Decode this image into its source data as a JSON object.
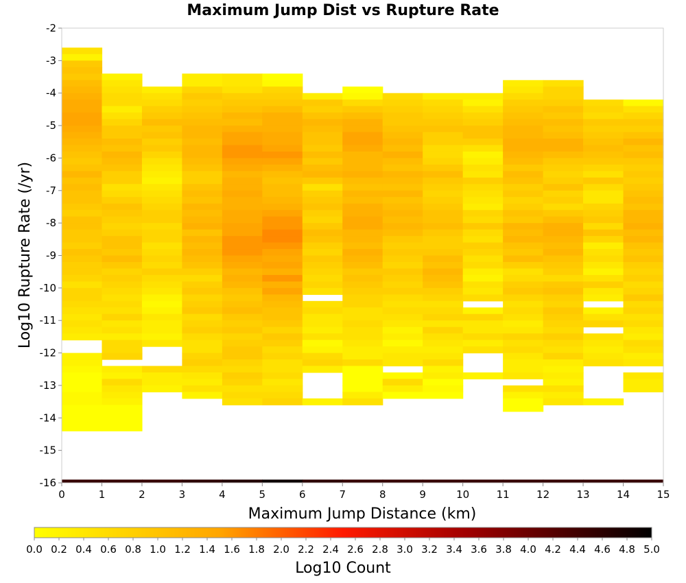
{
  "chart_data": {
    "type": "heatmap",
    "title": "Maximum Jump Dist vs Rupture Rate",
    "xlabel": "Maximum Jump Distance (km)",
    "ylabel": "Log10 Rupture Rate (/yr)",
    "xlim": [
      0,
      15
    ],
    "ylim": [
      -16,
      -2
    ],
    "x_ticks": [
      "0",
      "1",
      "2",
      "3",
      "4",
      "5",
      "6",
      "7",
      "8",
      "9",
      "10",
      "11",
      "12",
      "13",
      "14",
      "15"
    ],
    "y_ticks": [
      "-2",
      "-3",
      "-4",
      "-5",
      "-6",
      "-7",
      "-8",
      "-9",
      "-10",
      "-11",
      "-12",
      "-13",
      "-14",
      "-15",
      "-16"
    ],
    "x_bin_edges": [
      0,
      1,
      2,
      3,
      4,
      5,
      6,
      7,
      8,
      9,
      10,
      11,
      12,
      13,
      14,
      15
    ],
    "y_bin_size": 0.2,
    "y_top_edge": -2.6,
    "bottom_row_ylim": [
      -16,
      -15.9
    ],
    "bottom_row_values": [
      4.5,
      4.5,
      4.5,
      4.6,
      4.7,
      4.9,
      4.6,
      4.5,
      4.5,
      4.5,
      4.5,
      4.5,
      4.5,
      4.5,
      4.5
    ],
    "grid": false,
    "missing_value": null,
    "columns": [
      {
        "x": 0.5,
        "values": [
          0.5,
          0.2,
          0.9,
          1.0,
          0.9,
          1.1,
          1.2,
          1.3,
          1.4,
          1.4,
          1.5,
          1.5,
          1.4,
          1.3,
          1.2,
          1.1,
          1.0,
          0.9,
          1.0,
          1.2,
          1.0,
          1.1,
          1.0,
          1.0,
          0.9,
          0.8,
          1.0,
          1.0,
          0.9,
          0.9,
          0.8,
          1.0,
          0.9,
          0.8,
          0.8,
          0.7,
          0.5,
          0.7,
          0.7,
          0.6,
          0.5,
          0.4,
          0.5,
          0.4,
          0.3,
          null,
          null,
          0.2,
          0.2,
          0.1,
          0.0,
          0.0,
          0.0,
          0.1,
          0.1,
          0.0,
          0.0,
          0.0,
          0.0,
          null
        ]
      },
      {
        "x": 1.5,
        "values": [
          null,
          null,
          null,
          null,
          0.2,
          0.4,
          0.5,
          0.6,
          0.6,
          0.3,
          0.5,
          0.7,
          0.9,
          0.9,
          1.1,
          1.0,
          1.2,
          1.1,
          1.0,
          0.8,
          0.8,
          0.5,
          0.6,
          0.8,
          1.0,
          0.9,
          0.8,
          0.7,
          0.8,
          1.0,
          1.0,
          0.9,
          1.1,
          0.9,
          0.7,
          0.8,
          0.7,
          0.6,
          0.5,
          0.6,
          0.5,
          0.7,
          0.4,
          0.5,
          0.3,
          0.6,
          0.6,
          0.7,
          null,
          0.3,
          0.2,
          0.6,
          0.4,
          0.3,
          0.2,
          0.0,
          0.0,
          0.0,
          0.0,
          null
        ]
      },
      {
        "x": 2.5,
        "values": [
          null,
          null,
          null,
          null,
          null,
          null,
          0.3,
          0.5,
          0.6,
          0.8,
          0.9,
          1.1,
          0.9,
          1.0,
          0.8,
          0.9,
          0.7,
          0.5,
          0.4,
          0.3,
          0.2,
          0.4,
          0.5,
          0.6,
          0.7,
          0.8,
          0.8,
          0.6,
          0.7,
          0.7,
          0.5,
          0.6,
          0.7,
          0.6,
          0.8,
          0.6,
          0.5,
          0.4,
          0.2,
          0.1,
          0.2,
          0.4,
          0.3,
          0.3,
          0.2,
          0.4,
          null,
          null,
          null,
          0.6,
          0.3,
          0.3,
          0.2,
          null,
          null,
          null,
          null,
          null,
          null,
          null
        ]
      },
      {
        "x": 3.5,
        "values": [
          null,
          null,
          null,
          null,
          0.3,
          0.3,
          0.7,
          0.9,
          0.8,
          0.9,
          1.0,
          1.1,
          1.2,
          1.2,
          1.1,
          1.2,
          1.2,
          1.1,
          1.0,
          0.8,
          0.8,
          1.0,
          1.1,
          1.0,
          1.2,
          1.1,
          1.2,
          1.3,
          1.0,
          1.2,
          1.1,
          1.2,
          1.1,
          1.0,
          0.8,
          0.6,
          0.8,
          0.9,
          0.7,
          0.8,
          0.9,
          0.6,
          0.7,
          0.8,
          0.6,
          0.5,
          0.5,
          0.7,
          0.8,
          0.6,
          0.4,
          0.3,
          0.5,
          0.2,
          null,
          null,
          null,
          null,
          null,
          null
        ]
      },
      {
        "x": 4.5,
        "values": [
          null,
          null,
          null,
          null,
          0.4,
          0.4,
          0.5,
          0.8,
          0.9,
          1.0,
          1.2,
          1.1,
          1.3,
          1.5,
          1.5,
          1.6,
          1.6,
          1.5,
          1.4,
          1.2,
          1.3,
          1.3,
          1.4,
          1.3,
          1.3,
          1.4,
          1.4,
          1.5,
          1.5,
          1.6,
          1.6,
          1.6,
          1.5,
          1.4,
          1.2,
          1.3,
          1.2,
          1.0,
          0.9,
          1.0,
          1.1,
          0.9,
          0.8,
          0.9,
          0.7,
          0.8,
          0.9,
          0.9,
          0.7,
          0.6,
          0.8,
          0.7,
          0.5,
          0.6,
          0.5,
          null,
          null,
          null,
          null,
          null
        ]
      },
      {
        "x": 5.5,
        "values": [
          null,
          null,
          null,
          null,
          0.0,
          0.1,
          0.7,
          0.8,
          0.9,
          1.1,
          1.3,
          1.3,
          1.3,
          1.4,
          1.4,
          1.5,
          1.6,
          1.5,
          1.3,
          1.1,
          1.0,
          1.1,
          1.1,
          1.2,
          1.3,
          1.5,
          1.6,
          1.6,
          1.7,
          1.7,
          1.6,
          1.5,
          1.4,
          1.5,
          1.3,
          1.6,
          1.3,
          1.5,
          1.2,
          1.1,
          1.0,
          1.0,
          0.9,
          0.7,
          0.9,
          0.8,
          0.6,
          0.7,
          0.5,
          0.5,
          0.6,
          0.4,
          0.5,
          0.6,
          0.7,
          null,
          null,
          null,
          null,
          null
        ]
      },
      {
        "x": 6.5,
        "values": [
          null,
          null,
          null,
          null,
          null,
          null,
          null,
          0.3,
          0.9,
          0.8,
          1.0,
          1.2,
          1.1,
          1.0,
          1.0,
          0.9,
          1.1,
          0.9,
          1.1,
          1.2,
          0.9,
          0.5,
          0.8,
          0.9,
          1.0,
          0.8,
          0.7,
          0.9,
          1.1,
          1.0,
          0.8,
          0.7,
          0.9,
          0.8,
          0.7,
          0.6,
          0.7,
          0.5,
          null,
          0.5,
          0.6,
          0.4,
          0.4,
          0.3,
          0.5,
          0.1,
          0.2,
          0.6,
          0.7,
          0.3,
          null,
          null,
          null,
          null,
          0.2,
          null,
          null,
          null,
          null,
          null
        ]
      },
      {
        "x": 7.5,
        "values": [
          null,
          null,
          null,
          null,
          null,
          null,
          0.0,
          0.1,
          0.6,
          0.9,
          1.1,
          1.3,
          1.3,
          1.5,
          1.5,
          1.4,
          1.2,
          1.2,
          1.2,
          1.3,
          1.1,
          1.0,
          1.2,
          1.1,
          1.3,
          1.3,
          1.4,
          1.4,
          1.2,
          1.2,
          1.1,
          1.3,
          1.2,
          1.1,
          0.9,
          1.0,
          0.9,
          0.8,
          0.7,
          0.7,
          0.5,
          0.5,
          0.6,
          0.5,
          0.5,
          0.4,
          0.3,
          0.3,
          0.6,
          0.0,
          0.0,
          0.0,
          0.0,
          0.3,
          0.5,
          null,
          null,
          null,
          null,
          null
        ]
      },
      {
        "x": 8.5,
        "values": [
          null,
          null,
          null,
          null,
          null,
          null,
          null,
          0.6,
          0.7,
          0.8,
          0.9,
          0.9,
          1.0,
          1.1,
          1.2,
          1.1,
          1.3,
          1.1,
          1.0,
          1.2,
          1.1,
          1.0,
          1.2,
          1.0,
          1.1,
          1.2,
          1.1,
          1.2,
          1.1,
          0.9,
          0.8,
          0.9,
          0.8,
          0.7,
          0.9,
          0.8,
          0.7,
          0.8,
          0.6,
          0.5,
          0.6,
          0.5,
          0.4,
          0.2,
          0.3,
          0.1,
          0.3,
          0.4,
          0.4,
          null,
          0.1,
          0.6,
          0.3,
          0.0,
          null,
          null,
          null,
          null,
          null,
          null
        ]
      },
      {
        "x": 9.5,
        "values": [
          null,
          null,
          null,
          null,
          null,
          null,
          null,
          0.3,
          0.6,
          0.7,
          0.8,
          0.9,
          1.0,
          0.8,
          0.8,
          0.6,
          0.6,
          0.7,
          0.9,
          1.1,
          0.9,
          0.8,
          0.7,
          0.8,
          0.9,
          1.0,
          1.0,
          1.1,
          0.9,
          0.8,
          0.8,
          0.9,
          1.1,
          1.0,
          1.2,
          1.1,
          1.0,
          0.8,
          0.7,
          0.5,
          0.6,
          0.7,
          0.4,
          0.7,
          0.5,
          0.4,
          0.3,
          0.4,
          0.6,
          0.2,
          0.3,
          0.0,
          0.1,
          0.0,
          null,
          null,
          null,
          null,
          null,
          null
        ]
      },
      {
        "x": 10.5,
        "values": [
          null,
          null,
          null,
          null,
          null,
          null,
          null,
          0.3,
          0.2,
          0.5,
          0.7,
          0.8,
          1.0,
          1.0,
          0.8,
          0.5,
          0.2,
          0.3,
          0.5,
          0.4,
          0.8,
          0.6,
          0.5,
          0.4,
          0.3,
          0.7,
          0.6,
          0.9,
          0.6,
          0.5,
          0.8,
          0.7,
          0.5,
          0.6,
          0.3,
          0.2,
          0.5,
          0.4,
          0.6,
          null,
          0.2,
          0.7,
          0.4,
          0.4,
          0.6,
          0.3,
          0.5,
          null,
          null,
          null,
          0.2,
          null,
          null,
          null,
          null,
          null,
          null,
          null,
          null,
          null
        ]
      },
      {
        "x": 11.5,
        "values": [
          null,
          null,
          null,
          null,
          null,
          0.3,
          0.4,
          0.6,
          0.8,
          0.9,
          1.0,
          1.1,
          1.2,
          1.2,
          1.3,
          1.3,
          1.2,
          1.1,
          0.9,
          1.1,
          1.0,
          0.8,
          0.9,
          0.7,
          0.8,
          1.0,
          0.9,
          1.2,
          1.1,
          1.2,
          1.0,
          0.9,
          1.1,
          0.8,
          0.5,
          0.6,
          0.8,
          0.9,
          0.7,
          0.5,
          0.6,
          0.5,
          0.3,
          0.4,
          0.7,
          0.5,
          0.6,
          0.4,
          0.3,
          0.3,
          0.4,
          null,
          0.5,
          0.2,
          0.0,
          0.0,
          null,
          null,
          null,
          null
        ]
      },
      {
        "x": 12.5,
        "values": [
          null,
          null,
          null,
          null,
          null,
          0.5,
          0.7,
          0.7,
          0.8,
          1.0,
          0.9,
          1.1,
          1.0,
          1.1,
          1.3,
          1.3,
          1.1,
          0.9,
          0.8,
          0.7,
          0.8,
          1.0,
          0.7,
          0.8,
          0.6,
          0.9,
          1.1,
          1.3,
          1.3,
          1.2,
          1.1,
          1.2,
          1.0,
          0.9,
          0.8,
          0.6,
          0.9,
          1.0,
          0.8,
          0.7,
          0.9,
          0.8,
          0.7,
          0.6,
          0.8,
          0.6,
          0.5,
          0.7,
          0.3,
          0.2,
          0.3,
          0.2,
          0.5,
          0.3,
          0.4,
          null,
          null,
          null,
          null,
          null
        ]
      },
      {
        "x": 13.5,
        "values": [
          null,
          null,
          null,
          null,
          null,
          null,
          null,
          null,
          0.6,
          0.7,
          0.6,
          0.9,
          0.8,
          0.9,
          1.0,
          1.1,
          1.0,
          0.9,
          0.7,
          0.5,
          0.9,
          0.6,
          0.4,
          0.4,
          0.7,
          0.8,
          0.9,
          0.6,
          1.0,
          0.7,
          0.3,
          0.5,
          0.6,
          0.4,
          0.2,
          0.5,
          0.8,
          0.4,
          0.3,
          null,
          0.2,
          0.5,
          0.7,
          null,
          0.5,
          0.4,
          0.3,
          0.4,
          0.5,
          null,
          null,
          null,
          null,
          null,
          0.2,
          null,
          null,
          null,
          null,
          null
        ]
      },
      {
        "x": 14.5,
        "values": [
          null,
          null,
          null,
          null,
          null,
          null,
          null,
          null,
          0.1,
          0.5,
          0.7,
          0.9,
          0.8,
          1.0,
          1.2,
          1.0,
          1.1,
          0.9,
          0.8,
          0.9,
          0.8,
          0.9,
          1.0,
          1.1,
          1.0,
          1.2,
          1.2,
          1.3,
          1.1,
          1.2,
          1.0,
          0.9,
          1.0,
          0.8,
          0.7,
          0.8,
          0.6,
          0.7,
          0.9,
          0.6,
          0.7,
          0.5,
          0.6,
          0.4,
          0.3,
          0.6,
          0.5,
          0.3,
          0.4,
          null,
          0.4,
          0.3,
          0.3,
          null,
          null,
          null,
          null,
          null,
          null,
          null
        ]
      }
    ],
    "colorbar": {
      "label": "Log10 Count",
      "min": 0.0,
      "max": 5.0,
      "ticks": [
        "0.0",
        "0.2",
        "0.4",
        "0.6",
        "0.8",
        "1.0",
        "1.2",
        "1.4",
        "1.6",
        "1.8",
        "2.0",
        "2.2",
        "2.4",
        "2.6",
        "2.8",
        "3.0",
        "3.2",
        "3.4",
        "3.6",
        "3.8",
        "4.0",
        "4.2",
        "4.4",
        "4.6",
        "4.8",
        "5.0"
      ],
      "colormap": [
        "#ffff00",
        "#ffa500",
        "#ff0000",
        "#a00000",
        "#000000"
      ]
    }
  }
}
